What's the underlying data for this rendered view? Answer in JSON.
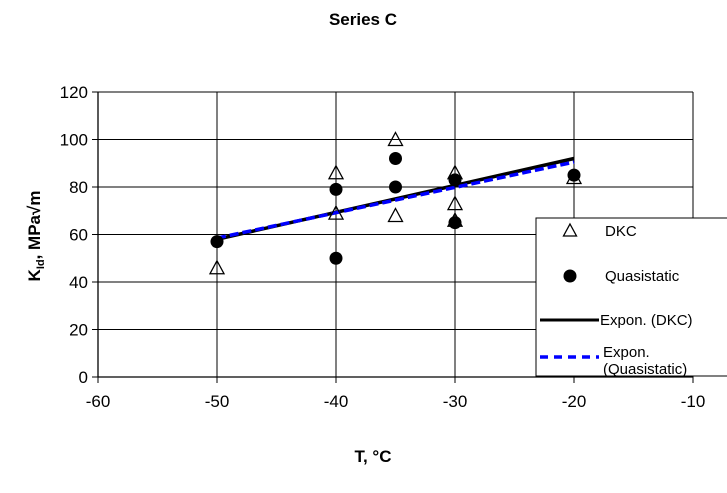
{
  "chart_data": {
    "type": "scatter",
    "title": "Series C",
    "xlabel": "T, °C",
    "ylabel_main": "K",
    "ylabel_sub": "Id",
    "ylabel_rest": ", MPa√m",
    "xlim": [
      -60,
      -10
    ],
    "ylim": [
      0,
      120
    ],
    "xticks": [
      -60,
      -50,
      -40,
      -30,
      -20,
      -10
    ],
    "yticks": [
      0,
      20,
      40,
      60,
      80,
      100,
      120
    ],
    "grid": true,
    "legend_position": "right",
    "series": [
      {
        "name": "DKC",
        "marker": "open-triangle",
        "color": "#000000",
        "points": [
          {
            "x": -50,
            "y": 46
          },
          {
            "x": -40,
            "y": 86
          },
          {
            "x": -40,
            "y": 69
          },
          {
            "x": -35,
            "y": 100
          },
          {
            "x": -35,
            "y": 68
          },
          {
            "x": -30,
            "y": 86
          },
          {
            "x": -30,
            "y": 73
          },
          {
            "x": -30,
            "y": 66
          },
          {
            "x": -20,
            "y": 84
          }
        ]
      },
      {
        "name": "Quasistatic",
        "marker": "filled-circle",
        "color": "#000000",
        "points": [
          {
            "x": -50,
            "y": 57
          },
          {
            "x": -40,
            "y": 79
          },
          {
            "x": -40,
            "y": 50
          },
          {
            "x": -35,
            "y": 92
          },
          {
            "x": -35,
            "y": 80
          },
          {
            "x": -30,
            "y": 83
          },
          {
            "x": -30,
            "y": 65
          },
          {
            "x": -20,
            "y": 85
          }
        ]
      },
      {
        "name": "Expon. (DKC)",
        "line_style": "solid",
        "color": "#000000",
        "points": [
          {
            "x": -50,
            "y": 58
          },
          {
            "x": -20,
            "y": 92
          }
        ]
      },
      {
        "name": "Expon. (Quasistatic)",
        "legend_lines": [
          "Expon.",
          "(Quasistatic)"
        ],
        "line_style": "dashed",
        "color": "#0000ff",
        "points": [
          {
            "x": -50,
            "y": 58.5
          },
          {
            "x": -20,
            "y": 90.5
          }
        ]
      }
    ]
  }
}
